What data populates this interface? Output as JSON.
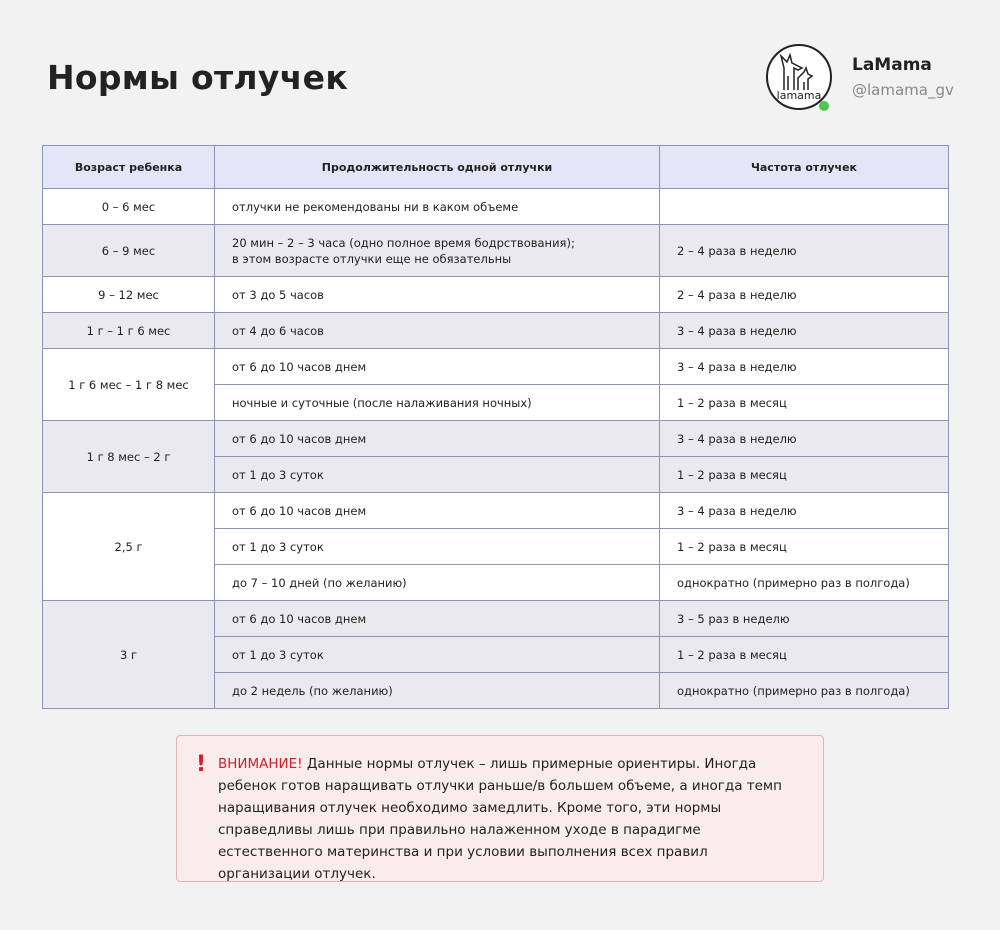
{
  "title": "Нормы отлучек",
  "brand": {
    "name": "LaMama",
    "handle": "@lamama_gv",
    "logo_text": "lamama",
    "status_color": "#4cc94a"
  },
  "table": {
    "headers": [
      "Возраст ребенка",
      "Продолжительность одной отлучки",
      "Частота отлучек"
    ],
    "groups": [
      {
        "age": "0 – 6 мес",
        "rows": [
          {
            "duration": "отлучки не рекомендованы ни в каком объеме",
            "frequency": ""
          }
        ]
      },
      {
        "age": "6 – 9 мес",
        "rows": [
          {
            "duration": "20 мин  –  2 – 3 часа (одно полное время бодрствования);",
            "duration_2": "в этом возрасте отлучки еще не обязательны",
            "frequency": "2 – 4 раза в неделю"
          }
        ]
      },
      {
        "age": "9 – 12 мес",
        "rows": [
          {
            "duration": "от 3 до 5 часов",
            "frequency": "2 – 4 раза в неделю"
          }
        ]
      },
      {
        "age": "1 г – 1 г 6 мес",
        "rows": [
          {
            "duration": "от 4 до 6 часов",
            "frequency": "3 – 4 раза в неделю"
          }
        ]
      },
      {
        "age": "1 г 6 мес – 1 г 8 мес",
        "rows": [
          {
            "duration": "от 6 до 10 часов днем",
            "frequency": "3 – 4 раза в неделю"
          },
          {
            "duration": "ночные и суточные (после налаживания ночных)",
            "frequency": "1 – 2 раза в месяц"
          }
        ]
      },
      {
        "age": "1 г 8 мес – 2 г",
        "rows": [
          {
            "duration": "от 6 до 10 часов днем",
            "frequency": "3 – 4 раза в неделю"
          },
          {
            "duration": "от 1 до 3 суток",
            "frequency": "1 – 2 раза в месяц"
          }
        ]
      },
      {
        "age": "2,5 г",
        "rows": [
          {
            "duration": "от 6 до 10 часов днем",
            "frequency": "3 – 4 раза в неделю"
          },
          {
            "duration": "от 1 до 3 суток",
            "frequency": "1 – 2 раза в месяц"
          },
          {
            "duration": "до 7 – 10 дней (по желанию)",
            "frequency": "однократно (примерно раз в полгода)"
          }
        ]
      },
      {
        "age": "3 г",
        "rows": [
          {
            "duration": "от 6 до 10 часов днем",
            "frequency": "3 – 5 раз в неделю"
          },
          {
            "duration": "от 1 до 3 суток",
            "frequency": "1 – 2 раза в месяц"
          },
          {
            "duration": "до 2 недель (по желанию)",
            "frequency": "однократно (примерно раз в полгода)"
          }
        ]
      }
    ]
  },
  "note": {
    "icon": "exclamation-icon",
    "warning_label": "ВНИМАНИЕ!",
    "text": " Данные нормы отлучек – лишь примерные ориентиры. Иногда ребенок готов наращивать отлучки раньше/в большем объеме, а иногда темп наращивания отлучек необходимо замедлить. Кроме того, эти нормы справедливы лишь при правильно налаженном уходе в парадигме естественного материнства и при условии выполнения всех правил организации отлучек.",
    "accent_color": "#c9232d"
  }
}
